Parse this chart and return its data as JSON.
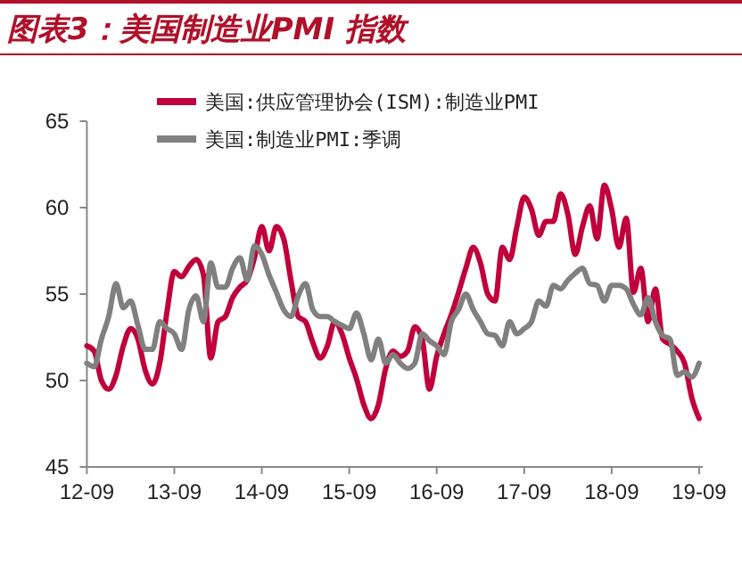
{
  "chart_data": {
    "type": "line",
    "title": "图表3：美国制造业PMI 指数",
    "categories": [
      "12-09",
      null,
      null,
      null,
      null,
      null,
      null,
      null,
      null,
      null,
      null,
      null,
      "13-09",
      null,
      null,
      null,
      null,
      null,
      null,
      null,
      null,
      null,
      null,
      null,
      "14-09",
      null,
      null,
      null,
      null,
      null,
      null,
      null,
      null,
      null,
      null,
      null,
      "15-09",
      null,
      null,
      null,
      null,
      null,
      null,
      null,
      null,
      null,
      null,
      null,
      "16-09",
      null,
      null,
      null,
      null,
      null,
      null,
      null,
      null,
      null,
      null,
      null,
      "17-09",
      null,
      null,
      null,
      null,
      null,
      null,
      null,
      null,
      null,
      null,
      null,
      "18-09",
      null,
      null,
      null,
      null,
      null,
      null,
      null,
      null,
      null,
      null,
      null,
      "19-09"
    ],
    "series": [
      {
        "name": "美国:供应管理协会(ISM):制造业PMI",
        "color": "#c0003c",
        "values": [
          52.0,
          51.7,
          50,
          49.5,
          50.3,
          52,
          53,
          52.4,
          50.6,
          49.8,
          51,
          54,
          56.3,
          56,
          56.6,
          57,
          56.1,
          51.3,
          53.4,
          53.7,
          54.8,
          55.4,
          55.8,
          57.1,
          58.9,
          57.5,
          58.9,
          58.2,
          55.8,
          53.7,
          53.4,
          52.2,
          51.3,
          52,
          53.4,
          52.7,
          51.3,
          50.1,
          48.6,
          47.8,
          48.6,
          50.7,
          51.7,
          51.4,
          51.7,
          53.1,
          52.4,
          49.5,
          51.4,
          52.7,
          53.8,
          55.1,
          56.5,
          57.7,
          56.8,
          55,
          54.6,
          57.7,
          57,
          58.9,
          60.6,
          59.9,
          58.4,
          59.2,
          59.2,
          60.8,
          59.6,
          57.3,
          58.9,
          60.1,
          58.2,
          61.3,
          59.9,
          57.7,
          59.4,
          55.1,
          56.5,
          53.4,
          55.3,
          52.4,
          52.1,
          51.7,
          51,
          49,
          47.8
        ]
      },
      {
        "name": "美国:制造业PMI:季调",
        "color": "#808080",
        "values": [
          51,
          50.8,
          52.4,
          53.7,
          55.6,
          54.2,
          54.6,
          53.2,
          51.8,
          51.8,
          53.4,
          53,
          52.7,
          51.8,
          54.1,
          54.9,
          53.4,
          56.8,
          55.4,
          55.4,
          56.5,
          57.1,
          55.8,
          57.8,
          57.3,
          56.1,
          55.1,
          54.1,
          53.7,
          54.9,
          55.6,
          54.1,
          53.7,
          53.7,
          53.4,
          53.2,
          53,
          53.9,
          52.7,
          51.2,
          52.4,
          51,
          51.5,
          51,
          50.7,
          51,
          52.7,
          52.3,
          52,
          51.5,
          53.4,
          54.1,
          55,
          54.1,
          53.4,
          52.7,
          52.6,
          52,
          53.4,
          52.7,
          53,
          53.4,
          54.6,
          54.3,
          55.5,
          55.3,
          55.8,
          56.2,
          56.5,
          55.6,
          55.5,
          54.6,
          55.5,
          55.5,
          55.3,
          54.4,
          53.8,
          54.8,
          53.4,
          52.6,
          52.4,
          50.3,
          50.5,
          50.2,
          51
        ]
      }
    ],
    "ylim": [
      45,
      65
    ],
    "yticks": [
      45,
      50,
      55,
      60,
      65
    ],
    "legend": "top left",
    "grid": false,
    "marker": "none",
    "line_style": "solid"
  }
}
